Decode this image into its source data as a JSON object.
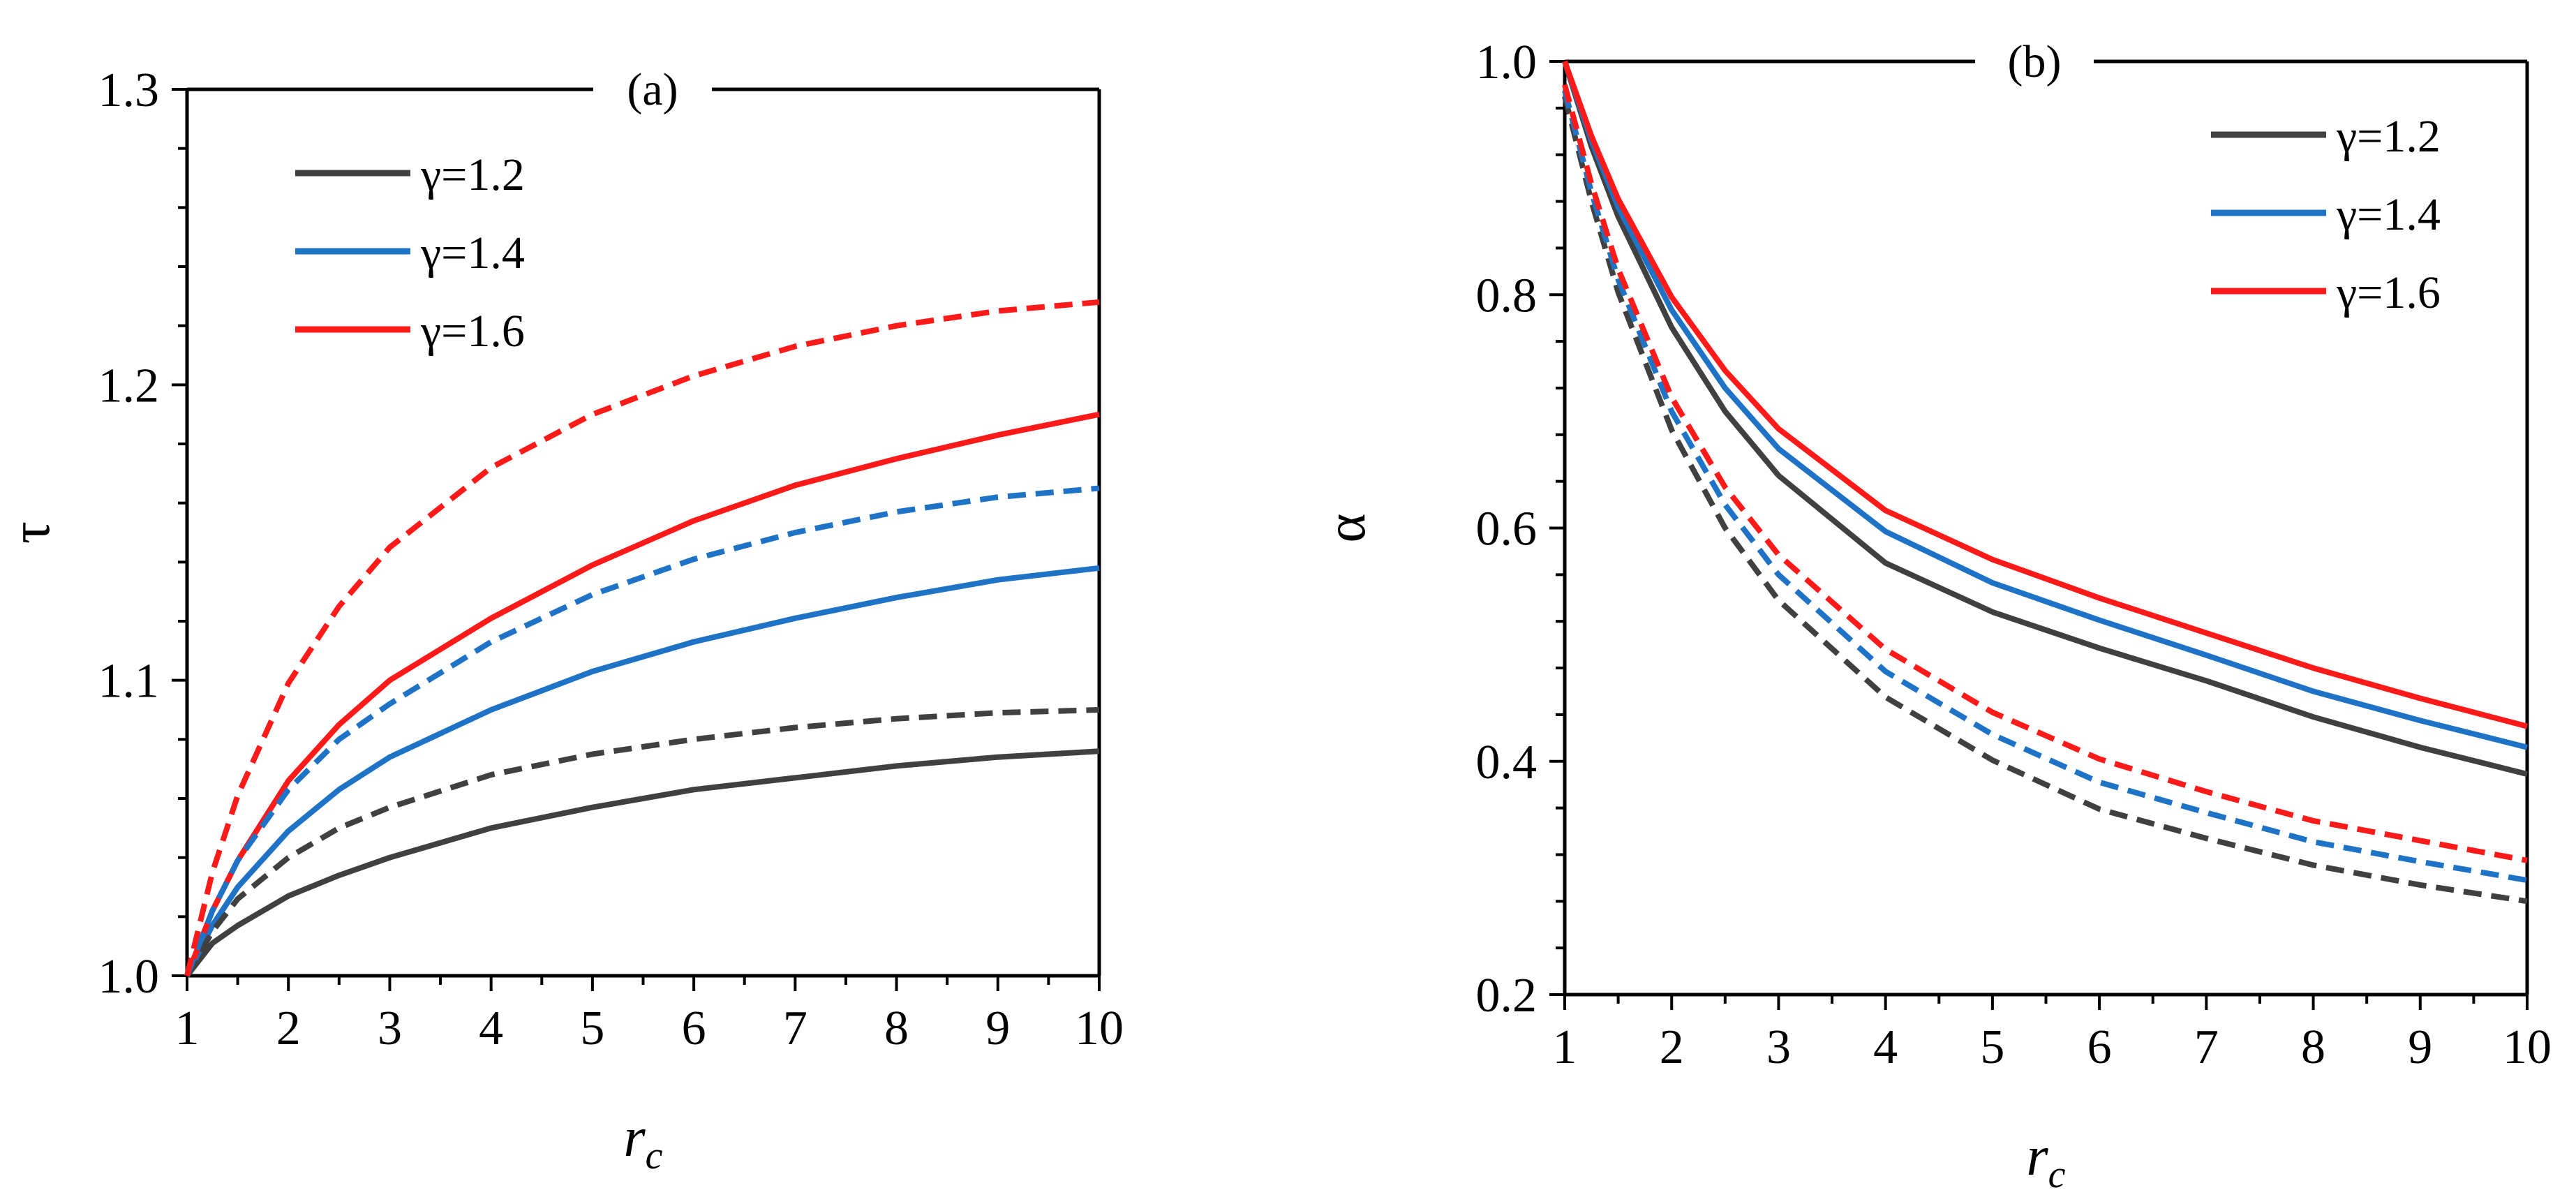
{
  "chart_data": [
    {
      "type": "line",
      "panel_label": "(a)",
      "xlabel": "r",
      "xlabel_subscript": "c",
      "ylabel": "τ",
      "xlim": [
        1,
        10
      ],
      "ylim": [
        1.0,
        1.3
      ],
      "x_ticks": [
        "1",
        "2",
        "3",
        "4",
        "5",
        "6",
        "7",
        "8",
        "9",
        "10"
      ],
      "y_ticks": [
        "1.0",
        "1.1",
        "1.2",
        "1.3"
      ],
      "legend_position": "top-left",
      "legend": [
        {
          "label": "γ=1.2",
          "color": "#404040"
        },
        {
          "label": "γ=1.4",
          "color": "#1f73c6"
        },
        {
          "label": "γ=1.6",
          "color": "#ff1a1a"
        }
      ],
      "x": [
        1,
        1.25,
        1.5,
        2,
        2.5,
        3,
        4,
        5,
        6,
        7,
        8,
        9,
        10
      ],
      "series": [
        {
          "name": "γ=1.2",
          "style": "solid",
          "color": "#404040",
          "values": [
            1.0,
            1.011,
            1.017,
            1.027,
            1.034,
            1.04,
            1.05,
            1.057,
            1.063,
            1.067,
            1.071,
            1.074,
            1.076
          ]
        },
        {
          "name": "γ=1.4",
          "style": "solid",
          "color": "#1f73c6",
          "values": [
            1.0,
            1.017,
            1.03,
            1.049,
            1.063,
            1.074,
            1.09,
            1.103,
            1.113,
            1.121,
            1.128,
            1.134,
            1.138
          ]
        },
        {
          "name": "γ=1.6",
          "style": "solid",
          "color": "#ff1a1a",
          "values": [
            1.0,
            1.022,
            1.039,
            1.066,
            1.085,
            1.1,
            1.121,
            1.139,
            1.154,
            1.166,
            1.175,
            1.183,
            1.19
          ]
        },
        {
          "name": "γ=1.2",
          "style": "dashed",
          "color": "#404040",
          "values": [
            1.0,
            1.015,
            1.026,
            1.04,
            1.05,
            1.057,
            1.068,
            1.075,
            1.08,
            1.084,
            1.087,
            1.089,
            1.09
          ]
        },
        {
          "name": "γ=1.4",
          "style": "dashed",
          "color": "#1f73c6",
          "values": [
            1.0,
            1.022,
            1.039,
            1.063,
            1.08,
            1.092,
            1.113,
            1.129,
            1.141,
            1.15,
            1.157,
            1.162,
            1.165
          ]
        },
        {
          "name": "γ=1.6",
          "style": "dashed",
          "color": "#ff1a1a",
          "values": [
            1.0,
            1.035,
            1.061,
            1.099,
            1.125,
            1.145,
            1.172,
            1.19,
            1.203,
            1.213,
            1.22,
            1.225,
            1.228
          ]
        }
      ]
    },
    {
      "type": "line",
      "panel_label": "(b)",
      "xlabel": "r",
      "xlabel_subscript": "c",
      "ylabel": "α",
      "xlim": [
        1,
        10
      ],
      "ylim": [
        0.2,
        1.0
      ],
      "x_ticks": [
        "1",
        "2",
        "3",
        "4",
        "5",
        "6",
        "7",
        "8",
        "9",
        "10"
      ],
      "y_ticks": [
        "0.2",
        "0.4",
        "0.6",
        "0.8",
        "1.0"
      ],
      "legend_position": "top-right",
      "legend": [
        {
          "label": "γ=1.2",
          "color": "#404040"
        },
        {
          "label": "γ=1.4",
          "color": "#1f73c6"
        },
        {
          "label": "γ=1.6",
          "color": "#ff1a1a"
        }
      ],
      "x": [
        1,
        1.25,
        1.5,
        2,
        2.5,
        3,
        4,
        5,
        6,
        7,
        8,
        9,
        10
      ],
      "series": [
        {
          "name": "γ=1.2",
          "style": "solid",
          "color": "#404040",
          "values": [
            1.0,
            0.927,
            0.867,
            0.772,
            0.7,
            0.645,
            0.57,
            0.528,
            0.497,
            0.469,
            0.438,
            0.412,
            0.389
          ]
        },
        {
          "name": "γ=1.4",
          "style": "solid",
          "color": "#1f73c6",
          "values": [
            1.0,
            0.932,
            0.875,
            0.787,
            0.72,
            0.668,
            0.597,
            0.553,
            0.521,
            0.491,
            0.46,
            0.435,
            0.412
          ]
        },
        {
          "name": "γ=1.6",
          "style": "solid",
          "color": "#ff1a1a",
          "values": [
            1.0,
            0.936,
            0.882,
            0.798,
            0.735,
            0.685,
            0.615,
            0.573,
            0.54,
            0.51,
            0.48,
            0.454,
            0.43
          ]
        },
        {
          "name": "γ=1.2",
          "style": "dashed",
          "color": "#404040",
          "values": [
            0.97,
            0.88,
            0.802,
            0.684,
            0.6,
            0.538,
            0.455,
            0.401,
            0.359,
            0.334,
            0.311,
            0.294,
            0.28
          ]
        },
        {
          "name": "γ=1.4",
          "style": "dashed",
          "color": "#1f73c6",
          "values": [
            0.975,
            0.888,
            0.813,
            0.7,
            0.62,
            0.56,
            0.477,
            0.423,
            0.382,
            0.356,
            0.331,
            0.314,
            0.298
          ]
        },
        {
          "name": "γ=1.6",
          "style": "dashed",
          "color": "#ff1a1a",
          "values": [
            0.98,
            0.895,
            0.822,
            0.712,
            0.635,
            0.577,
            0.496,
            0.442,
            0.402,
            0.374,
            0.349,
            0.332,
            0.315
          ]
        }
      ]
    }
  ]
}
